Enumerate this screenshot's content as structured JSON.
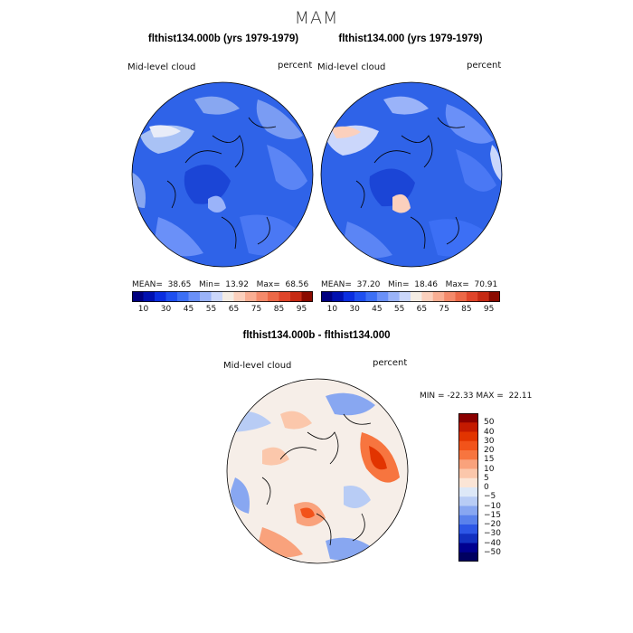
{
  "season_title": "MAM",
  "panels": [
    {
      "title": "flthist134.000b (yrs 1979-1979)",
      "variable": "Mid-level cloud",
      "units": "percent",
      "stats": {
        "mean_label": "MEAN=",
        "mean": "38.65",
        "min_label": "Min=",
        "min": "13.92",
        "max_label": "Max=",
        "max": "68.56"
      }
    },
    {
      "title": "flthist134.000 (yrs 1979-1979)",
      "variable": "Mid-level cloud",
      "units": "percent",
      "stats": {
        "mean_label": "MEAN=",
        "mean": "37.20",
        "min_label": "Min=",
        "min": "18.46",
        "max_label": "Max=",
        "max": "70.91"
      }
    }
  ],
  "colorbar": {
    "tick_labels": [
      "10",
      "30",
      "45",
      "55",
      "65",
      "75",
      "85",
      "95"
    ],
    "colors": [
      "#000080",
      "#0010b0",
      "#0a2ee0",
      "#1e4ff0",
      "#3c6ff5",
      "#6a90f8",
      "#9ab3f9",
      "#cbd7fb",
      "#f4ece4",
      "#fbd0bd",
      "#f9ae93",
      "#f48a6b",
      "#ec6847",
      "#e0452a",
      "#c62a13",
      "#8b0a00"
    ]
  },
  "difference": {
    "title": "flthist134.000b - flthist134.000",
    "variable": "Mid-level cloud",
    "units": "percent",
    "stats": {
      "min_label": "MIN =",
      "min": "-22.33",
      "max_label": "MAX =",
      "max": "22.11"
    },
    "colorbar_labels": [
      "50",
      "40",
      "30",
      "20",
      "15",
      "10",
      "5",
      "0",
      "−5",
      "−10",
      "−15",
      "−20",
      "−30",
      "−40",
      "−50"
    ],
    "colorbar_colors": [
      "#8b0000",
      "#c41a00",
      "#e23400",
      "#f2531a",
      "#f7753f",
      "#f9a27c",
      "#fbc7ab",
      "#fbe5d6",
      "#dde8f7",
      "#b8ccf5",
      "#88a7f1",
      "#5a82ec",
      "#2d57e6",
      "#1230c0",
      "#000090",
      "#000060"
    ]
  }
}
